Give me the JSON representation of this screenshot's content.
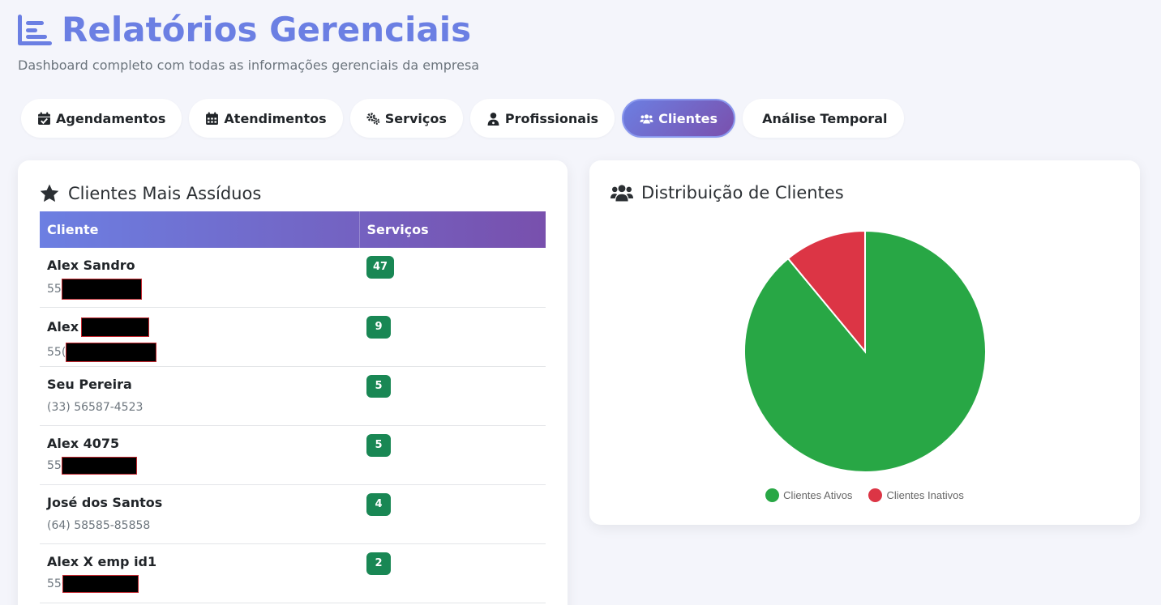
{
  "header": {
    "title": "Relatórios Gerenciais",
    "subtitle": "Dashboard completo com todas as informações gerenciais da empresa",
    "icon": "chart-list-icon",
    "accent": "#6b7fe3"
  },
  "tabs": [
    {
      "label": "Agendamentos",
      "icon": "calendar-check-icon",
      "active": false
    },
    {
      "label": "Atendimentos",
      "icon": "calendar-grid-icon",
      "active": false
    },
    {
      "label": "Serviços",
      "icon": "gears-icon",
      "active": false
    },
    {
      "label": "Profissionais",
      "icon": "user-doctor-icon",
      "active": false
    },
    {
      "label": "Clientes",
      "icon": "users-icon",
      "active": true
    },
    {
      "label": "Análise Temporal",
      "icon": "",
      "active": false
    }
  ],
  "top_clients": {
    "title": "Clientes Mais Assíduos",
    "icon": "star-icon",
    "columns": [
      "Cliente",
      "Serviços"
    ],
    "rows": [
      {
        "name": "Alex Sandro",
        "phone": "55",
        "services": "47",
        "phone_redacted": true,
        "name_redacted": false
      },
      {
        "name": "Alex",
        "phone": "55(",
        "services": "9",
        "phone_redacted": true,
        "name_redacted": true
      },
      {
        "name": "Seu Pereira",
        "phone": "(33) 56587-4523",
        "services": "5",
        "phone_redacted": false,
        "name_redacted": false
      },
      {
        "name": "Alex 4075",
        "phone": "55",
        "services": "5",
        "phone_redacted": true,
        "name_redacted": false
      },
      {
        "name": "José dos Santos",
        "phone": "(64) 58585-85858",
        "services": "4",
        "phone_redacted": false,
        "name_redacted": false
      },
      {
        "name": "Alex X emp id1",
        "phone": "556",
        "services": "2",
        "phone_redacted": true,
        "name_redacted": false
      }
    ]
  },
  "distribution": {
    "title": "Distribuição de Clientes",
    "icon": "users-icon"
  },
  "chart_data": {
    "type": "pie",
    "title": "",
    "labels": [
      "Clientes Ativos",
      "Clientes Inativos"
    ],
    "values": [
      89,
      11
    ],
    "colors": [
      "#28a745",
      "#dc3545"
    ],
    "legend": "bottom"
  },
  "colors": {
    "badge": "#198754",
    "tab_active_start": "#6c7fe2",
    "tab_active_end": "#7a50ad"
  }
}
